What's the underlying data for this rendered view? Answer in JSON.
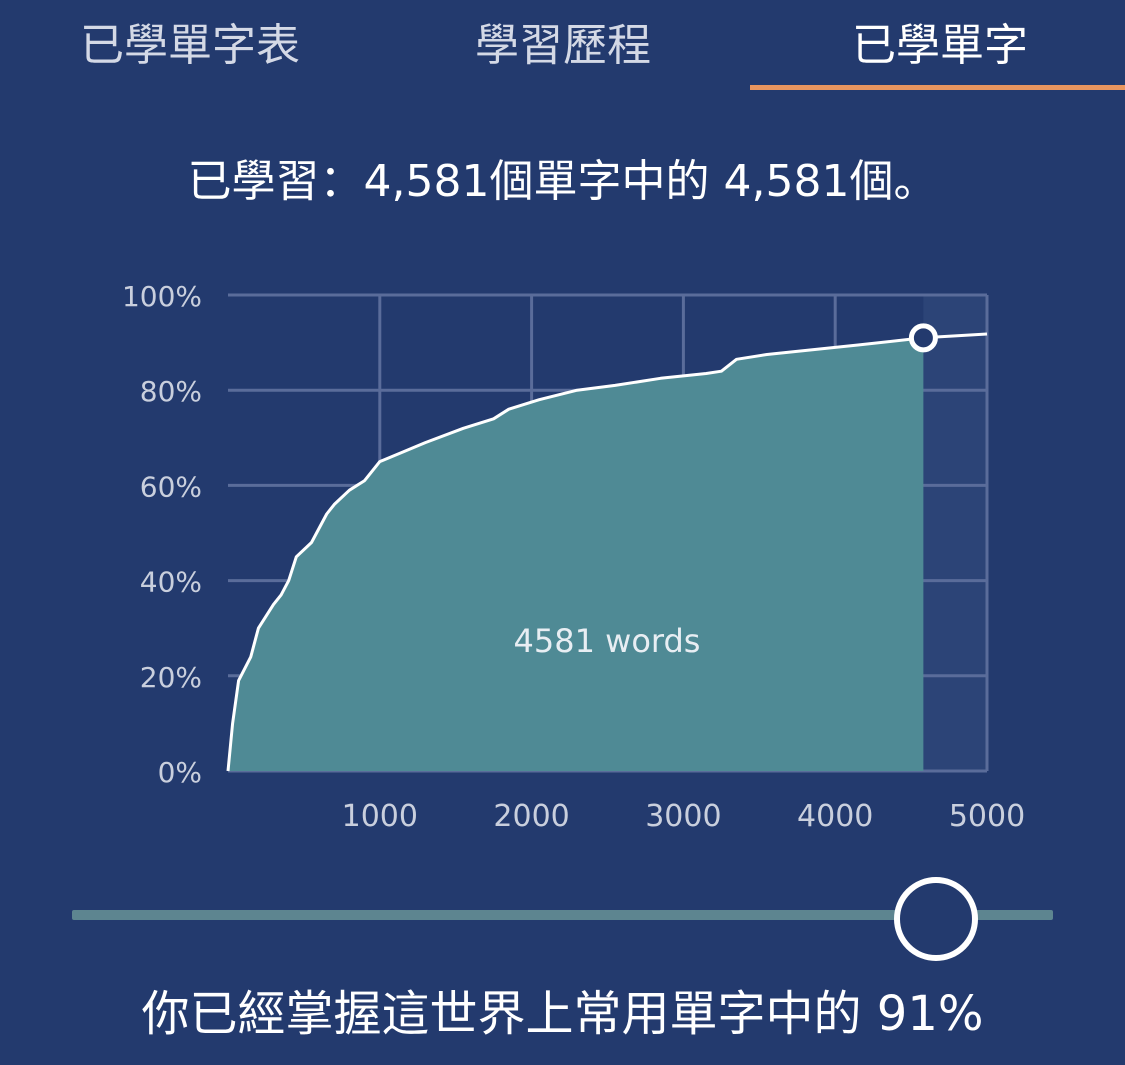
{
  "tabs": [
    {
      "label": "已學單字表",
      "active": false
    },
    {
      "label": "學習歷程",
      "active": false
    },
    {
      "label": "已學單字",
      "active": true
    }
  ],
  "summary_text": "已學習：4,581個單字中的 4,581個。",
  "mastery_text": "你已經掌握這世界上常用單字中的 91%",
  "slider": {
    "value": 4581,
    "max": 5000
  },
  "colors": {
    "background": "#233a6e",
    "accent": "#e8955f",
    "fill": "#4f8a95",
    "grid": "#5a6c9a",
    "remaining_fill": "#2c4477"
  },
  "chart_data": {
    "type": "area",
    "title": "",
    "xlabel": "",
    "ylabel": "",
    "xlim": [
      0,
      5000
    ],
    "ylim": [
      0,
      100
    ],
    "x_ticks": [
      "1000",
      "2000",
      "3000",
      "4000",
      "5000"
    ],
    "y_ticks": [
      "0%",
      "20%",
      "40%",
      "60%",
      "80%",
      "100%"
    ],
    "grid": true,
    "annotation": "4581 words",
    "marker": {
      "x": 4581,
      "y": 91
    },
    "x": [
      0,
      30,
      70,
      150,
      200,
      300,
      350,
      400,
      450,
      550,
      650,
      700,
      800,
      900,
      1000,
      1150,
      1300,
      1550,
      1750,
      1850,
      2050,
      2300,
      2550,
      2850,
      3150,
      3250,
      3350,
      3550,
      3850,
      4150,
      4581,
      5000
    ],
    "y": [
      0,
      10,
      19,
      24,
      30,
      35,
      37,
      40,
      45,
      48,
      54,
      56,
      59,
      61,
      65,
      67,
      69,
      72,
      74,
      76,
      78,
      80,
      81,
      82.5,
      83.5,
      84,
      86.5,
      87.5,
      88.5,
      89.5,
      91,
      91.8
    ]
  }
}
